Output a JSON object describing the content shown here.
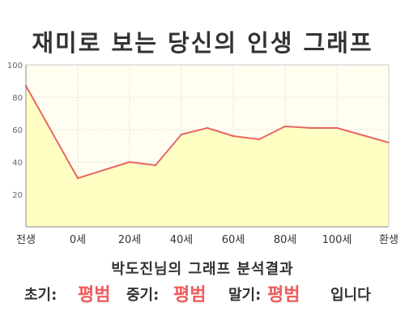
{
  "title": "재미로 보는 당신의 인생 그래프",
  "chart_data": {
    "type": "area",
    "x": [
      -20,
      0,
      20,
      30,
      40,
      50,
      60,
      70,
      80,
      90,
      100,
      120
    ],
    "values": [
      87,
      30,
      40,
      38,
      57,
      61,
      56,
      54,
      62,
      61,
      61,
      52
    ],
    "x_tick_labels": [
      {
        "x": -20,
        "label": "전생"
      },
      {
        "x": 0,
        "label": "0세"
      },
      {
        "x": 20,
        "label": "20세"
      },
      {
        "x": 40,
        "label": "40세"
      },
      {
        "x": 60,
        "label": "60세"
      },
      {
        "x": 80,
        "label": "80세"
      },
      {
        "x": 100,
        "label": "100세"
      },
      {
        "x": 120,
        "label": "환생"
      }
    ],
    "y_ticks": [
      20,
      40,
      60,
      80,
      100
    ],
    "ylim": [
      0,
      100
    ],
    "xlim": [
      -20,
      120
    ],
    "grid": true,
    "colors": {
      "line": "#e86666",
      "fill": "#ffffc4",
      "plot_bg": "#fffef0",
      "grid": "#dddddd"
    }
  },
  "result": {
    "title": "박도진님의 그래프 분석결과",
    "early_label": "초기:",
    "early_value": "평범",
    "mid_label": "중기:",
    "mid_value": "평범",
    "late_label": "말기:",
    "late_value": "평범",
    "suffix": "입니다"
  }
}
